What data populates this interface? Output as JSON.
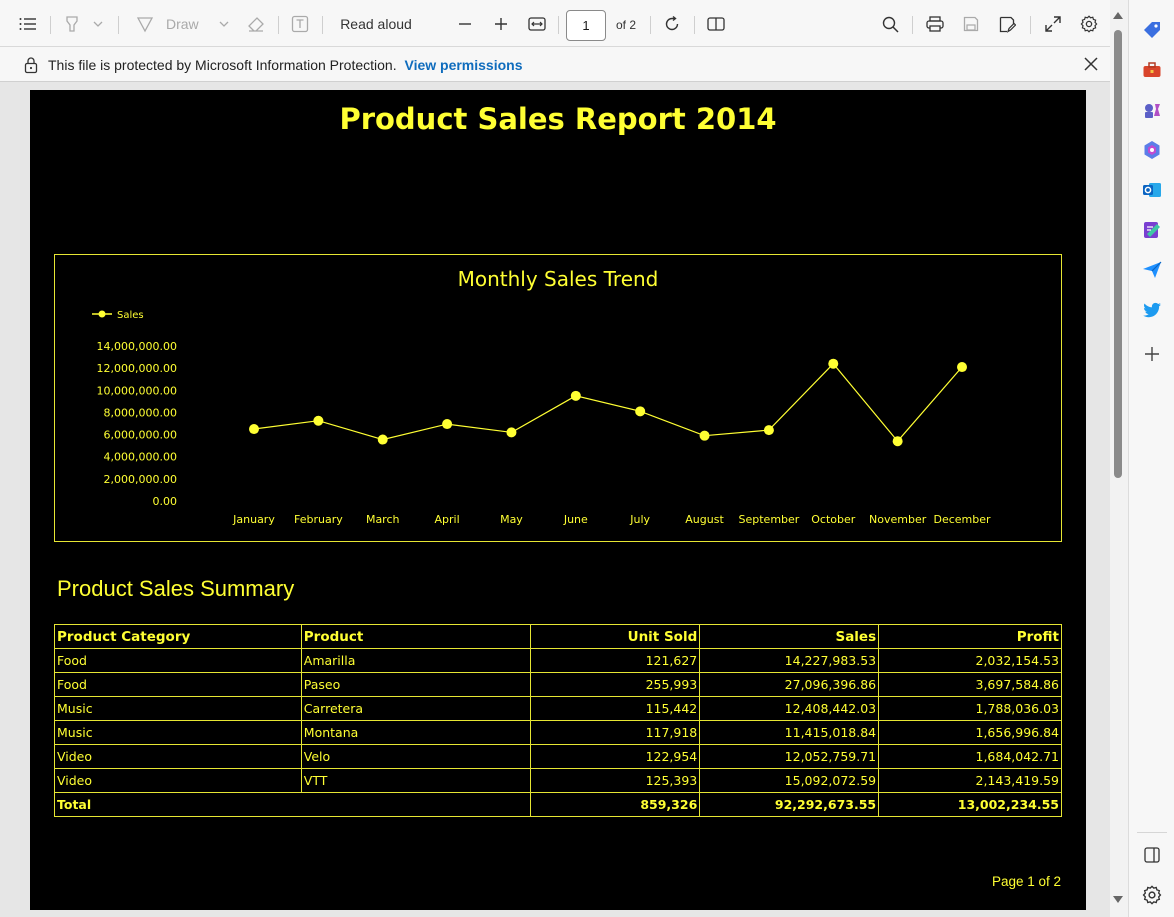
{
  "toolbar": {
    "draw_label": "Draw",
    "read_aloud_label": "Read aloud",
    "page_current": "1",
    "page_total_label": "of 2"
  },
  "infobar": {
    "message": "This file is protected by Microsoft Information Protection.",
    "link": "View permissions"
  },
  "report": {
    "title": "Product Sales Report 2014",
    "summary_title": "Product Sales Summary",
    "footer": "Page 1 of 2"
  },
  "chart_data": {
    "type": "line",
    "title": "Monthly Sales Trend",
    "series": [
      {
        "name": "Sales",
        "values": [
          6500000,
          7250000,
          5550000,
          6950000,
          6200000,
          9500000,
          8100000,
          5900000,
          6400000,
          12400000,
          5400000,
          12100000
        ]
      }
    ],
    "categories": [
      "January",
      "February",
      "March",
      "April",
      "May",
      "June",
      "July",
      "August",
      "September",
      "October",
      "November",
      "December"
    ],
    "y_ticks": [
      "14,000,000.00",
      "12,000,000.00",
      "10,000,000.00",
      "8,000,000.00",
      "6,000,000.00",
      "4,000,000.00",
      "2,000,000.00",
      "0.00"
    ],
    "ylim": [
      0,
      14000000
    ],
    "grid": false,
    "legend": "top-left",
    "color": "#ffff33"
  },
  "table": {
    "headers": [
      "Product Category",
      "Product",
      "Unit Sold",
      "Sales",
      "Profit"
    ],
    "rows": [
      [
        "Food",
        "Amarilla",
        "121,627",
        "14,227,983.53",
        "2,032,154.53"
      ],
      [
        "Food",
        "Paseo",
        "255,993",
        "27,096,396.86",
        "3,697,584.86"
      ],
      [
        "Music",
        "Carretera",
        "115,442",
        "12,408,442.03",
        "1,788,036.03"
      ],
      [
        "Music",
        "Montana",
        "117,918",
        "11,415,018.84",
        "1,656,996.84"
      ],
      [
        "Video",
        "Velo",
        "122,954",
        "12,052,759.71",
        "1,684,042.71"
      ],
      [
        "Video",
        "VTT",
        "125,393",
        "15,092,072.59",
        "2,143,419.59"
      ]
    ],
    "total": {
      "label": "Total",
      "unit_sold": "859,326",
      "sales": "92,292,673.55",
      "profit": "13,002,234.55"
    }
  },
  "icons": {
    "toolbar": [
      "contents-icon",
      "highlight-icon",
      "draw-icon",
      "eraser-icon",
      "text-box-icon",
      "zoom-out-icon",
      "zoom-in-icon",
      "fit-width-icon",
      "rotate-icon",
      "page-view-icon",
      "search-icon",
      "print-icon",
      "save-icon",
      "save-as-icon",
      "fullscreen-icon",
      "settings-icon"
    ],
    "sidebar": [
      "tag-icon",
      "toolbox-icon",
      "games-icon",
      "copilot-icon",
      "outlook-icon",
      "designer-icon",
      "send-icon",
      "twitter-icon",
      "add-icon",
      "split-screen-icon",
      "sidebar-settings-icon"
    ]
  }
}
